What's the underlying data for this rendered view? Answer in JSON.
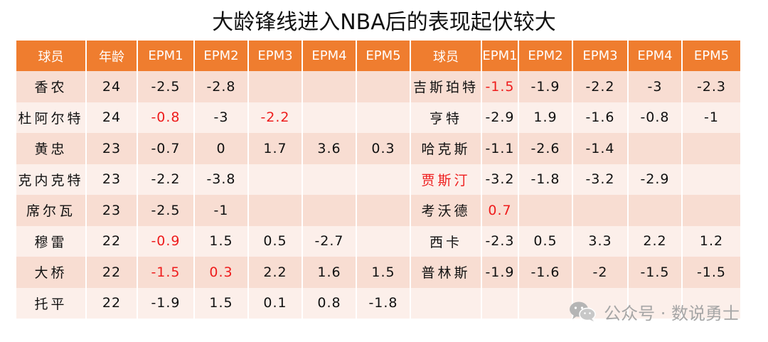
{
  "title": "大龄锋线进入NBA后的表现起伏较大",
  "headers": [
    "球员",
    "年龄",
    "EPM1",
    "EPM2",
    "EPM3",
    "EPM4",
    "EPM5",
    "球员",
    "EPM1",
    "EPM2",
    "EPM3",
    "EPM4",
    "EPM5"
  ],
  "rows": [
    [
      "香农",
      "24",
      "-2.5",
      "-2.8",
      "",
      "",
      "",
      "吉斯珀特",
      "-1.5",
      "-1.9",
      "-2.2",
      "-3",
      "-2.3"
    ],
    [
      "杜阿尔特",
      "24",
      "-0.8",
      "-3",
      "-2.2",
      "",
      "",
      "亨特",
      "-2.9",
      "1.9",
      "-1.6",
      "-0.8",
      "-1"
    ],
    [
      "黄忠",
      "23",
      "-0.7",
      "0",
      "1.7",
      "3.6",
      "0.3",
      "哈克斯",
      "-1.1",
      "-2.6",
      "-1.4",
      "",
      ""
    ],
    [
      "克内克特",
      "23",
      "-2.2",
      "-3.8",
      "",
      "",
      "",
      "贾斯汀",
      "-3.2",
      "-1.8",
      "-3.2",
      "-2.9",
      ""
    ],
    [
      "席尔瓦",
      "23",
      "-2.5",
      "-1",
      "",
      "",
      "",
      "考沃德",
      "0.7",
      "",
      "",
      "",
      ""
    ],
    [
      "穆雷",
      "22",
      "-0.9",
      "1.5",
      "0.5",
      "-2.7",
      "",
      "西卡",
      "-2.3",
      "0.5",
      "3.3",
      "2.2",
      "1.2"
    ],
    [
      "大桥",
      "22",
      "-1.5",
      "0.3",
      "2.2",
      "1.6",
      "1.5",
      "普林斯",
      "-1.9",
      "-1.6",
      "-2",
      "-1.5",
      "-1.5"
    ],
    [
      "托平",
      "22",
      "-1.9",
      "1.5",
      "0.1",
      "0.8",
      "-1.8",
      "",
      "",
      "",
      "",
      "",
      ""
    ]
  ],
  "highlight_color": "#ee1c1c",
  "header_color": "#ef7d2f",
  "watermark": {
    "text": "公众号 · 数说勇士",
    "icon": "wechat-icon"
  }
}
